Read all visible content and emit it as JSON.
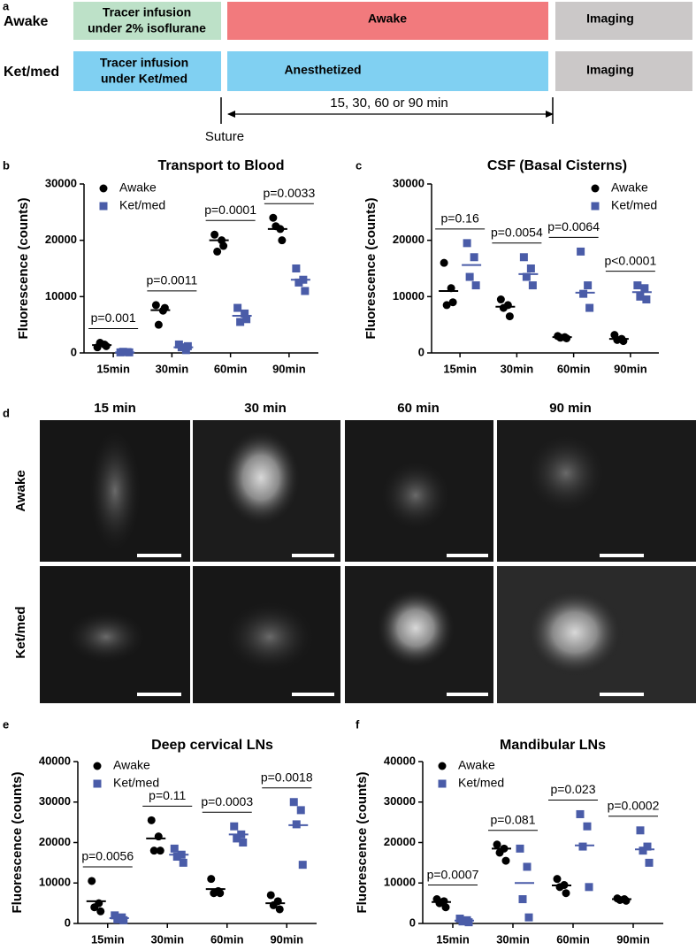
{
  "panel_labels": [
    "a",
    "b",
    "c",
    "d",
    "e",
    "f"
  ],
  "timeline": {
    "rows": [
      {
        "label": "Awake",
        "boxes": [
          {
            "lines": [
              "Tracer infusion",
              "under 2% isoflurane"
            ]
          },
          {
            "lines": [
              "Awake"
            ]
          },
          {
            "lines": [
              "Imaging"
            ]
          }
        ]
      },
      {
        "label": "Ket/med",
        "boxes": [
          {
            "lines": [
              "Tracer infusion",
              "under Ket/med"
            ]
          },
          {
            "lines": [
              "Anesthetized"
            ]
          },
          {
            "lines": [
              "Imaging"
            ]
          }
        ]
      }
    ],
    "duration": "15, 30, 60 or 90 min",
    "suture": "Suture"
  },
  "images": {
    "columns": [
      "15 min",
      "30 min",
      "60 min",
      "90 min"
    ],
    "rows": [
      "Awake",
      "Ket/med"
    ]
  },
  "chart_data": [
    {
      "type": "dotplot",
      "title": "Transport to Blood",
      "y_label": "Fluorescence (counts)",
      "legend": "upper left",
      "categories": [
        "15min",
        "30min",
        "60min",
        "90min"
      ],
      "ylim": [
        0,
        30000
      ],
      "yticks": [
        0,
        10000,
        20000,
        30000
      ],
      "annotations": [
        "p=0.001",
        "p=0.0011",
        "p=0.0001",
        "p=0.0033"
      ],
      "series": [
        {
          "name": "Awake",
          "color": "#000000",
          "marker": "circle",
          "values": [
            [
              1000,
              1500,
              1800,
              1200
            ],
            [
              8500,
              7500,
              5000,
              8000
            ],
            [
              21000,
              20000,
              18000,
              19000
            ],
            [
              24000,
              22000,
              22500,
              20000
            ]
          ],
          "means": [
            1400,
            7600,
            20000,
            22000
          ]
        },
        {
          "name": "Ket/med",
          "color": "#4a5ca8",
          "marker": "square",
          "values": [
            [
              100,
              150,
              200,
              100
            ],
            [
              1500,
              500,
              1000,
              1200
            ],
            [
              8000,
              7000,
              5500,
              6000
            ],
            [
              15000,
              13000,
              12500,
              11000
            ]
          ],
          "means": [
            100,
            1000,
            6600,
            13000
          ]
        }
      ]
    },
    {
      "type": "dotplot",
      "title": "CSF (Basal Cisterns)",
      "y_label": "Fluorescence (counts)",
      "legend": "upper right",
      "categories": [
        "15min",
        "30min",
        "60min",
        "90min"
      ],
      "ylim": [
        0,
        30000
      ],
      "yticks": [
        0,
        10000,
        20000,
        30000
      ],
      "annotations": [
        "p=0.16",
        "p=0.0054",
        "p=0.0064",
        "p<0.0001"
      ],
      "series": [
        {
          "name": "Awake",
          "color": "#000000",
          "marker": "circle",
          "values": [
            [
              16000,
              11500,
              8500,
              9000
            ],
            [
              9500,
              8500,
              8000,
              6500
            ],
            [
              3000,
              2800,
              2700,
              2600
            ],
            [
              3200,
              2500,
              2300,
              2100
            ]
          ],
          "means": [
            11000,
            8200,
            2800,
            2500
          ]
        },
        {
          "name": "Ket/med",
          "color": "#4a5ca8",
          "marker": "square",
          "values": [
            [
              19500,
              17000,
              13500,
              12000
            ],
            [
              17000,
              15000,
              13500,
              12000
            ],
            [
              18000,
              12000,
              10500,
              8000
            ],
            [
              12000,
              11500,
              10000,
              9500
            ]
          ],
          "means": [
            15600,
            14000,
            10700,
            10800
          ]
        }
      ]
    },
    {
      "type": "dotplot",
      "title": "Deep cervical LNs",
      "y_label": "Fluorescence (counts)",
      "legend": "upper left",
      "categories": [
        "15min",
        "30min",
        "60min",
        "90min"
      ],
      "ylim": [
        0,
        40000
      ],
      "yticks": [
        0,
        10000,
        20000,
        30000,
        40000
      ],
      "annotations": [
        "p=0.0056",
        "p=0.11",
        "p=0.0003",
        "p=0.0018"
      ],
      "series": [
        {
          "name": "Awake",
          "color": "#000000",
          "marker": "circle",
          "values": [
            [
              10500,
              5000,
              4000,
              3000
            ],
            [
              25500,
              21500,
              18000,
              18000
            ],
            [
              11000,
              8000,
              7500,
              7500
            ],
            [
              7000,
              5500,
              4500,
              3500
            ]
          ],
          "means": [
            5500,
            21000,
            8500,
            5000
          ]
        },
        {
          "name": "Ket/med",
          "color": "#4a5ca8",
          "marker": "square",
          "values": [
            [
              2000,
              1500,
              1000,
              800
            ],
            [
              18500,
              17000,
              16500,
              15000
            ],
            [
              24000,
              22000,
              21000,
              20000
            ],
            [
              30000,
              28000,
              24500,
              14500
            ]
          ],
          "means": [
            1300,
            17000,
            22000,
            24300
          ]
        }
      ]
    },
    {
      "type": "dotplot",
      "title": "Mandibular LNs",
      "y_label": "Fluorescence (counts)",
      "legend": "upper left",
      "categories": [
        "15min",
        "30min",
        "60min",
        "90min"
      ],
      "ylim": [
        0,
        40000
      ],
      "yticks": [
        0,
        10000,
        20000,
        30000,
        40000
      ],
      "annotations": [
        "p=0.0007",
        "p=0.081",
        "p=0.023",
        "p=0.0002"
      ],
      "series": [
        {
          "name": "Awake",
          "color": "#000000",
          "marker": "circle",
          "values": [
            [
              6000,
              5500,
              5000,
              4000
            ],
            [
              19500,
              18500,
              17500,
              15500
            ],
            [
              11000,
              9500,
              9000,
              7500
            ],
            [
              6200,
              6000,
              5800,
              5600
            ]
          ],
          "means": [
            5300,
            18500,
            9400,
            6000
          ]
        },
        {
          "name": "Ket/med",
          "color": "#4a5ca8",
          "marker": "square",
          "values": [
            [
              1200,
              800,
              500,
              300
            ],
            [
              18500,
              14000,
              6000,
              1500
            ],
            [
              27000,
              24000,
              19000,
              9000
            ],
            [
              23000,
              19000,
              18000,
              15000
            ]
          ],
          "means": [
            700,
            10000,
            19300,
            18300
          ]
        }
      ]
    }
  ]
}
